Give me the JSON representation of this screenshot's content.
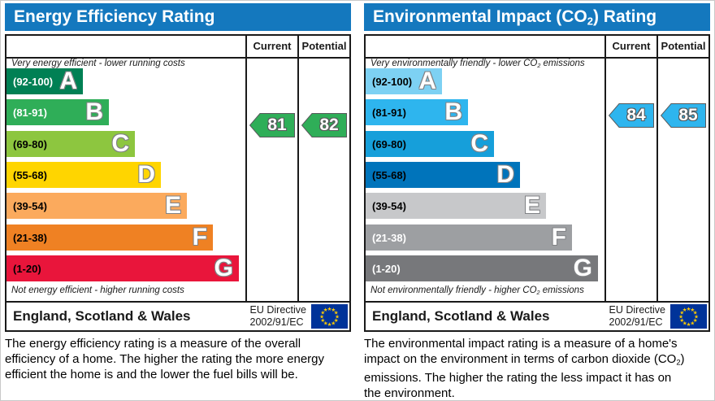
{
  "colors": {
    "title_bg": "#1478be",
    "title_text": "#ffffff",
    "flag_bg": "#003399",
    "flag_star": "#ffcc00"
  },
  "chart_data": [
    {
      "type": "bar",
      "title": "Energy Efficiency Rating",
      "categories": [
        "A",
        "B",
        "C",
        "D",
        "E",
        "F",
        "G"
      ],
      "band_ranges": [
        "92-100",
        "81-91",
        "69-80",
        "55-68",
        "39-54",
        "21-38",
        "1-20"
      ],
      "band_colors": [
        "#008054",
        "#2fae58",
        "#8dc63f",
        "#ffd500",
        "#fbaa5d",
        "#ef8123",
        "#e9153b"
      ],
      "current": 81,
      "potential": 82,
      "top_note": "Very energy efficient - lower running costs",
      "bottom_note": "Not energy efficient - higher running costs",
      "legend_position": "top-right columns Current / Potential"
    },
    {
      "type": "bar",
      "title": "Environmental Impact (CO2) Rating",
      "categories": [
        "A",
        "B",
        "C",
        "D",
        "E",
        "F",
        "G"
      ],
      "band_ranges": [
        "92-100",
        "81-91",
        "69-80",
        "55-68",
        "39-54",
        "21-38",
        "1-20"
      ],
      "band_colors": [
        "#7dd1f3",
        "#2eb5ee",
        "#169fda",
        "#0074bb",
        "#c7c8ca",
        "#9d9fa2",
        "#77787b"
      ],
      "current": 84,
      "potential": 85,
      "top_note": "Very environmentally friendly - lower CO2 emissions",
      "bottom_note": "Not environmentally friendly - higher CO2 emissions",
      "legend_position": "top-right columns Current / Potential"
    }
  ],
  "panels": [
    {
      "title": {
        "pre": "Energy Efficiency Rating",
        "sub": "",
        "post": ""
      },
      "col_current": "Current",
      "col_potential": "Potential",
      "top_label": {
        "pre": "Very energy efficient - lower running costs",
        "sub": "",
        "post": ""
      },
      "bottom_label": {
        "pre": "Not energy efficient - higher running costs",
        "sub": "",
        "post": ""
      },
      "bands": [
        {
          "letter": "A",
          "range": "(92-100)",
          "color": "#008054",
          "label_color": "#ffffff"
        },
        {
          "letter": "B",
          "range": "(81-91)",
          "color": "#2fae58",
          "label_color": "#ffffff"
        },
        {
          "letter": "C",
          "range": "(69-80)",
          "color": "#8dc63f",
          "label_color": "#000000"
        },
        {
          "letter": "D",
          "range": "(55-68)",
          "color": "#ffd500",
          "label_color": "#000000"
        },
        {
          "letter": "E",
          "range": "(39-54)",
          "color": "#fbaa5d",
          "label_color": "#000000"
        },
        {
          "letter": "F",
          "range": "(21-38)",
          "color": "#ef8123",
          "label_color": "#000000"
        },
        {
          "letter": "G",
          "range": "(1-20)",
          "color": "#e9153b",
          "label_color": "#000000"
        }
      ],
      "current": {
        "value": "81",
        "color": "#2fae58"
      },
      "potential": {
        "value": "82",
        "color": "#2fae58"
      },
      "footer": {
        "region": "England, Scotland & Wales",
        "directive_line1": "EU Directive",
        "directive_line2": "2002/91/EC"
      },
      "description": {
        "pre": "The energy efficiency rating is a measure of the overall efficiency of a home. The higher the rating the more energy efficient the home is and the lower the fuel bills will be.",
        "sub": "",
        "post": ""
      }
    },
    {
      "title": {
        "pre": "Environmental Impact (CO",
        "sub": "2",
        "post": ") Rating"
      },
      "col_current": "Current",
      "col_potential": "Potential",
      "top_label": {
        "pre": "Very environmentally friendly - lower CO",
        "sub": "2",
        "post": " emissions"
      },
      "bottom_label": {
        "pre": "Not environmentally friendly - higher CO",
        "sub": "2",
        "post": " emissions"
      },
      "bands": [
        {
          "letter": "A",
          "range": "(92-100)",
          "color": "#7dd1f3",
          "label_color": "#000000"
        },
        {
          "letter": "B",
          "range": "(81-91)",
          "color": "#2eb5ee",
          "label_color": "#000000"
        },
        {
          "letter": "C",
          "range": "(69-80)",
          "color": "#169fda",
          "label_color": "#000000"
        },
        {
          "letter": "D",
          "range": "(55-68)",
          "color": "#0074bb",
          "label_color": "#000000"
        },
        {
          "letter": "E",
          "range": "(39-54)",
          "color": "#c7c8ca",
          "label_color": "#000000"
        },
        {
          "letter": "F",
          "range": "(21-38)",
          "color": "#9d9fa2",
          "label_color": "#ffffff"
        },
        {
          "letter": "G",
          "range": "(1-20)",
          "color": "#77787b",
          "label_color": "#ffffff"
        }
      ],
      "current": {
        "value": "84",
        "color": "#2eb5ee"
      },
      "potential": {
        "value": "85",
        "color": "#2eb5ee"
      },
      "footer": {
        "region": "England, Scotland & Wales",
        "directive_line1": "EU Directive",
        "directive_line2": "2002/91/EC"
      },
      "description": {
        "pre": "The environmental impact rating is a measure of a home's impact on the environment in terms of carbon dioxide (CO",
        "sub": "2",
        "post": ") emissions. The higher the rating the less impact it has on the environment."
      }
    }
  ]
}
